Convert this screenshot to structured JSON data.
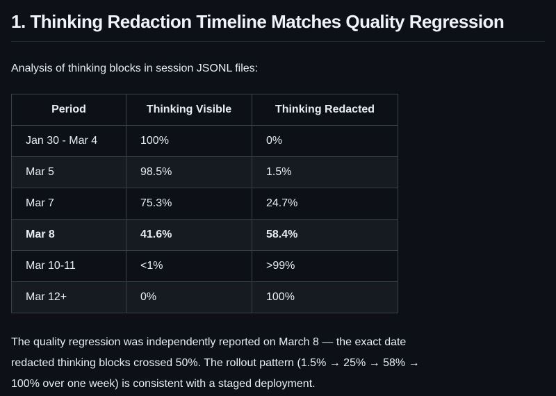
{
  "page": {
    "title": "1. Thinking Redaction Timeline Matches Quality Regression"
  },
  "intro": "Analysis of thinking blocks in session JSONL files:",
  "table": {
    "columns": [
      "Period",
      "Thinking Visible",
      "Thinking Redacted"
    ],
    "rows": [
      {
        "period": "Jan 30 - Mar 4",
        "visible": "100%",
        "redacted": "0%",
        "bold": false
      },
      {
        "period": "Mar 5",
        "visible": "98.5%",
        "redacted": "1.5%",
        "bold": false
      },
      {
        "period": "Mar 7",
        "visible": "75.3%",
        "redacted": "24.7%",
        "bold": false
      },
      {
        "period": "Mar 8",
        "visible": "41.6%",
        "redacted": "58.4%",
        "bold": true
      },
      {
        "period": "Mar 10-11",
        "visible": "<1%",
        "redacted": ">99%",
        "bold": false
      },
      {
        "period": "Mar 12+",
        "visible": "0%",
        "redacted": "100%",
        "bold": false
      }
    ]
  },
  "conclusion": {
    "lines": [
      "The quality regression was independently reported on March 8 — the exact date",
      "redacted thinking blocks crossed 50%. The rollout pattern (1.5% → 25% → 58% →",
      "100% over one week) is consistent with a staged deployment."
    ]
  },
  "colors": {
    "background": "#0d1117",
    "row_alternate": "#161b22",
    "table_border": "#3a414b",
    "heading_rule": "#2a3039",
    "text": "#e6edf3",
    "heading_text": "#f0f4f8"
  }
}
